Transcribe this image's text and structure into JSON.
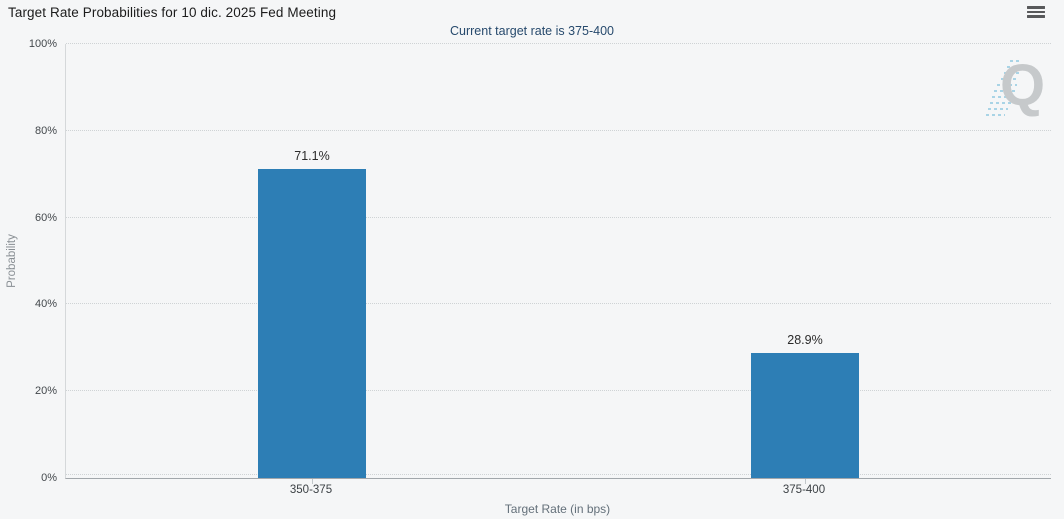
{
  "header": {
    "title": "Target Rate Probabilities for 10 dic. 2025 Fed Meeting",
    "subtitle": "Current target rate is 375-400"
  },
  "icons": {
    "menu": "hamburger-menu-icon",
    "watermark": "quikstrike-q-logo"
  },
  "watermark_letter": "Q",
  "chart_data": {
    "type": "bar",
    "title": "Target Rate Probabilities for 10 dic. 2025 Fed Meeting",
    "subtitle": "Current target rate is 375-400",
    "categories": [
      "350-375",
      "375-400"
    ],
    "values": [
      71.1,
      28.9
    ],
    "data_labels": [
      "71.1%",
      "28.9%"
    ],
    "xlabel": "Target Rate (in bps)",
    "ylabel": "Probability",
    "ylim": [
      0,
      100
    ],
    "ytick_labels": [
      "0%",
      "20%",
      "40%",
      "60%",
      "80%",
      "100%"
    ],
    "grid": "horizontal dotted",
    "legend": "none",
    "bar_color": "#2d7eb5"
  },
  "colors": {
    "background": "#f5f6f7",
    "bar": "#2d7eb5",
    "subtitle_text": "#274a6d",
    "gridline": "#cfd3d5",
    "x_axis_line": "#a2a7ab",
    "y_axis_line": "#d5d8da",
    "watermark_gray": "#c6c9cb",
    "watermark_blue": "#a9d4e6"
  }
}
